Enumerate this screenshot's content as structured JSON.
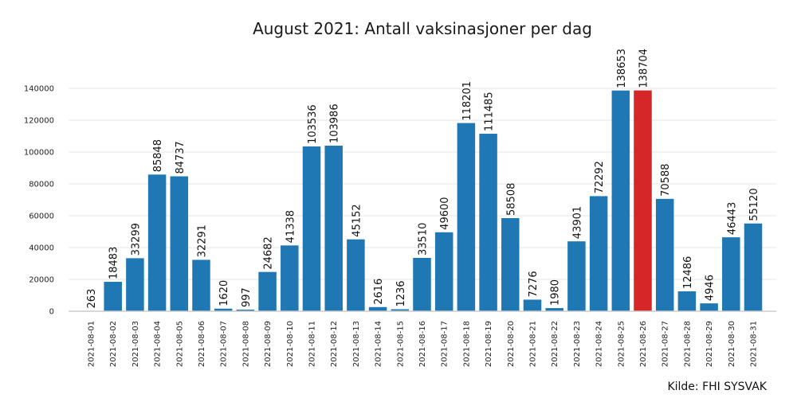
{
  "chart_data": {
    "type": "bar",
    "title": "August 2021: Antall vaksinasjoner per dag",
    "xlabel": "",
    "ylabel": "",
    "source": "Kilde: FHI SYSVAK",
    "ylim": [
      0,
      148000
    ],
    "yticks": [
      0,
      20000,
      40000,
      60000,
      80000,
      100000,
      120000,
      140000
    ],
    "grid": true,
    "bar_color": "#1f77b4",
    "highlight_color": "#d62728",
    "highlight_index": 25,
    "categories": [
      "2021-08-01",
      "2021-08-02",
      "2021-08-03",
      "2021-08-04",
      "2021-08-05",
      "2021-08-06",
      "2021-08-07",
      "2021-08-08",
      "2021-08-09",
      "2021-08-10",
      "2021-08-11",
      "2021-08-12",
      "2021-08-13",
      "2021-08-14",
      "2021-08-15",
      "2021-08-16",
      "2021-08-17",
      "2021-08-18",
      "2021-08-19",
      "2021-08-20",
      "2021-08-21",
      "2021-08-22",
      "2021-08-23",
      "2021-08-24",
      "2021-08-25",
      "2021-08-26",
      "2021-08-27",
      "2021-08-28",
      "2021-08-29",
      "2021-08-30",
      "2021-08-31"
    ],
    "values": [
      263,
      18483,
      33299,
      85848,
      84737,
      32291,
      1620,
      997,
      24682,
      41338,
      103536,
      103986,
      45152,
      2616,
      1236,
      33510,
      49600,
      118201,
      111485,
      58508,
      7276,
      1980,
      43901,
      72292,
      138653,
      138704,
      70588,
      12486,
      4946,
      46443,
      55120
    ]
  }
}
